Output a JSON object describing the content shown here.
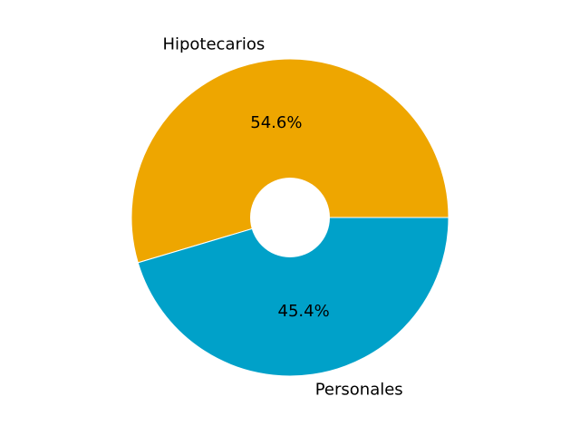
{
  "chart_data": {
    "type": "pie",
    "donut": true,
    "start_angle_deg": 0,
    "direction": "counterclockwise",
    "slices": [
      {
        "label": "Hipotecarios",
        "value": 54.6,
        "pct_text": "54.6%",
        "color": "#EEA600"
      },
      {
        "label": "Personales",
        "value": 45.4,
        "pct_text": "45.4%",
        "color": "#00A1C9"
      }
    ],
    "edge_color": "#FFFFFF"
  }
}
